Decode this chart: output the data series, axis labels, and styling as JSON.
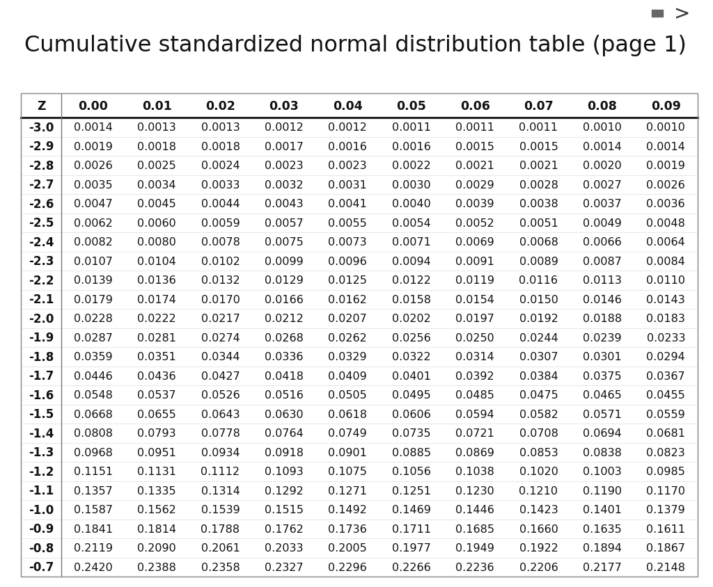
{
  "title": "Cumulative standardized normal distribution table (page 1)",
  "title_color": "#111111",
  "title_fontsize": 23,
  "bg_color": "#ffffff",
  "columns": [
    "Z",
    "0.00",
    "0.01",
    "0.02",
    "0.03",
    "0.04",
    "0.05",
    "0.06",
    "0.07",
    "0.08",
    "0.09"
  ],
  "rows": [
    [
      "-3.0",
      "0.0014",
      "0.0013",
      "0.0013",
      "0.0012",
      "0.0012",
      "0.0011",
      "0.0011",
      "0.0011",
      "0.0010",
      "0.0010"
    ],
    [
      "-2.9",
      "0.0019",
      "0.0018",
      "0.0018",
      "0.0017",
      "0.0016",
      "0.0016",
      "0.0015",
      "0.0015",
      "0.0014",
      "0.0014"
    ],
    [
      "-2.8",
      "0.0026",
      "0.0025",
      "0.0024",
      "0.0023",
      "0.0023",
      "0.0022",
      "0.0021",
      "0.0021",
      "0.0020",
      "0.0019"
    ],
    [
      "-2.7",
      "0.0035",
      "0.0034",
      "0.0033",
      "0.0032",
      "0.0031",
      "0.0030",
      "0.0029",
      "0.0028",
      "0.0027",
      "0.0026"
    ],
    [
      "-2.6",
      "0.0047",
      "0.0045",
      "0.0044",
      "0.0043",
      "0.0041",
      "0.0040",
      "0.0039",
      "0.0038",
      "0.0037",
      "0.0036"
    ],
    [
      "-2.5",
      "0.0062",
      "0.0060",
      "0.0059",
      "0.0057",
      "0.0055",
      "0.0054",
      "0.0052",
      "0.0051",
      "0.0049",
      "0.0048"
    ],
    [
      "-2.4",
      "0.0082",
      "0.0080",
      "0.0078",
      "0.0075",
      "0.0073",
      "0.0071",
      "0.0069",
      "0.0068",
      "0.0066",
      "0.0064"
    ],
    [
      "-2.3",
      "0.0107",
      "0.0104",
      "0.0102",
      "0.0099",
      "0.0096",
      "0.0094",
      "0.0091",
      "0.0089",
      "0.0087",
      "0.0084"
    ],
    [
      "-2.2",
      "0.0139",
      "0.0136",
      "0.0132",
      "0.0129",
      "0.0125",
      "0.0122",
      "0.0119",
      "0.0116",
      "0.0113",
      "0.0110"
    ],
    [
      "-2.1",
      "0.0179",
      "0.0174",
      "0.0170",
      "0.0166",
      "0.0162",
      "0.0158",
      "0.0154",
      "0.0150",
      "0.0146",
      "0.0143"
    ],
    [
      "-2.0",
      "0.0228",
      "0.0222",
      "0.0217",
      "0.0212",
      "0.0207",
      "0.0202",
      "0.0197",
      "0.0192",
      "0.0188",
      "0.0183"
    ],
    [
      "-1.9",
      "0.0287",
      "0.0281",
      "0.0274",
      "0.0268",
      "0.0262",
      "0.0256",
      "0.0250",
      "0.0244",
      "0.0239",
      "0.0233"
    ],
    [
      "-1.8",
      "0.0359",
      "0.0351",
      "0.0344",
      "0.0336",
      "0.0329",
      "0.0322",
      "0.0314",
      "0.0307",
      "0.0301",
      "0.0294"
    ],
    [
      "-1.7",
      "0.0446",
      "0.0436",
      "0.0427",
      "0.0418",
      "0.0409",
      "0.0401",
      "0.0392",
      "0.0384",
      "0.0375",
      "0.0367"
    ],
    [
      "-1.6",
      "0.0548",
      "0.0537",
      "0.0526",
      "0.0516",
      "0.0505",
      "0.0495",
      "0.0485",
      "0.0475",
      "0.0465",
      "0.0455"
    ],
    [
      "-1.5",
      "0.0668",
      "0.0655",
      "0.0643",
      "0.0630",
      "0.0618",
      "0.0606",
      "0.0594",
      "0.0582",
      "0.0571",
      "0.0559"
    ],
    [
      "-1.4",
      "0.0808",
      "0.0793",
      "0.0778",
      "0.0764",
      "0.0749",
      "0.0735",
      "0.0721",
      "0.0708",
      "0.0694",
      "0.0681"
    ],
    [
      "-1.3",
      "0.0968",
      "0.0951",
      "0.0934",
      "0.0918",
      "0.0901",
      "0.0885",
      "0.0869",
      "0.0853",
      "0.0838",
      "0.0823"
    ],
    [
      "-1.2",
      "0.1151",
      "0.1131",
      "0.1112",
      "0.1093",
      "0.1075",
      "0.1056",
      "0.1038",
      "0.1020",
      "0.1003",
      "0.0985"
    ],
    [
      "-1.1",
      "0.1357",
      "0.1335",
      "0.1314",
      "0.1292",
      "0.1271",
      "0.1251",
      "0.1230",
      "0.1210",
      "0.1190",
      "0.1170"
    ],
    [
      "-1.0",
      "0.1587",
      "0.1562",
      "0.1539",
      "0.1515",
      "0.1492",
      "0.1469",
      "0.1446",
      "0.1423",
      "0.1401",
      "0.1379"
    ],
    [
      "-0.9",
      "0.1841",
      "0.1814",
      "0.1788",
      "0.1762",
      "0.1736",
      "0.1711",
      "0.1685",
      "0.1660",
      "0.1635",
      "0.1611"
    ],
    [
      "-0.8",
      "0.2119",
      "0.2090",
      "0.2061",
      "0.2033",
      "0.2005",
      "0.1977",
      "0.1949",
      "0.1922",
      "0.1894",
      "0.1867"
    ],
    [
      "-0.7",
      "0.2420",
      "0.2388",
      "0.2358",
      "0.2327",
      "0.2296",
      "0.2266",
      "0.2236",
      "0.2206",
      "0.2177",
      "0.2148"
    ]
  ]
}
